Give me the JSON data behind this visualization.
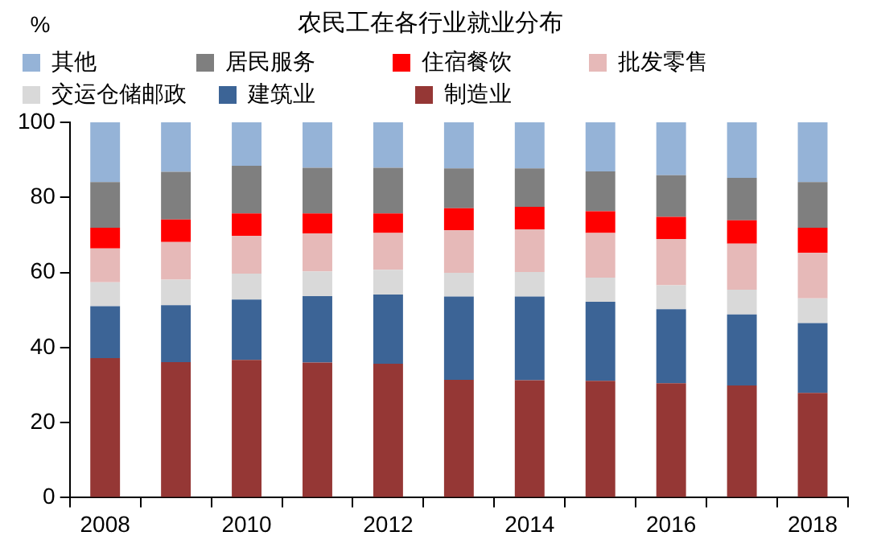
{
  "chart_data": {
    "type": "bar",
    "stacked": true,
    "title": "农民工在各行业就业分布",
    "ylabel": "%",
    "categories": [
      "2008",
      null,
      "2010",
      null,
      "2012",
      null,
      "2014",
      null,
      "2016",
      null,
      "2018"
    ],
    "series": [
      {
        "name": "制造业",
        "color": "#953735",
        "values": [
          37.2,
          36.1,
          36.7,
          36.0,
          35.7,
          31.4,
          31.3,
          31.1,
          30.5,
          29.9,
          27.9
        ]
      },
      {
        "name": "建筑业",
        "color": "#3c6496",
        "values": [
          13.8,
          15.2,
          16.1,
          17.7,
          18.4,
          22.2,
          22.3,
          21.1,
          19.7,
          18.9,
          18.6
        ]
      },
      {
        "name": "交运仓储邮政",
        "color": "#d9d9d9",
        "values": [
          6.4,
          6.8,
          6.9,
          6.6,
          6.6,
          6.3,
          6.5,
          6.4,
          6.4,
          6.6,
          6.6
        ]
      },
      {
        "name": "批发零售",
        "color": "#e6b9b8",
        "values": [
          9.0,
          10.0,
          10.0,
          10.1,
          9.8,
          11.3,
          11.4,
          11.9,
          12.3,
          12.3,
          12.1
        ]
      },
      {
        "name": "住宿餐饮",
        "color": "#ff0000",
        "values": [
          5.5,
          6.0,
          6.0,
          5.3,
          5.2,
          5.9,
          6.0,
          5.8,
          5.9,
          6.2,
          6.7
        ]
      },
      {
        "name": "居民服务",
        "color": "#7f7f7f",
        "values": [
          12.2,
          12.7,
          12.7,
          12.2,
          12.2,
          10.6,
          10.2,
          10.6,
          11.1,
          11.3,
          12.2
        ]
      },
      {
        "name": "其他",
        "color": "#95b3d7",
        "values": [
          15.9,
          13.2,
          11.6,
          12.1,
          12.1,
          12.3,
          12.3,
          13.1,
          14.1,
          14.8,
          15.9
        ]
      }
    ],
    "ylim": [
      0,
      100
    ],
    "yticks": [
      0,
      20,
      40,
      60,
      80,
      100
    ],
    "grid": false,
    "legend": "top"
  }
}
